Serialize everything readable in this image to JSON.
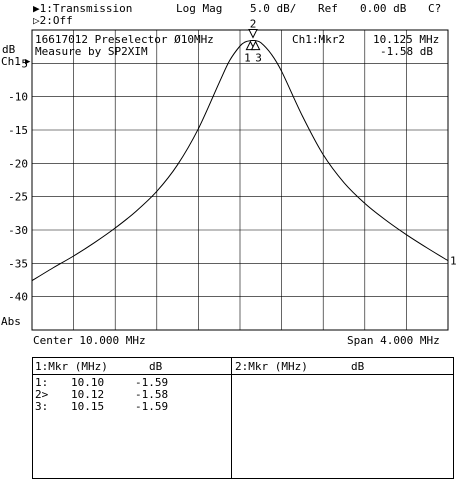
{
  "header": {
    "ch1_mode": "▶1:Transmission",
    "ch2_mode": "▷2:Off",
    "format": "Log Mag",
    "scale": "5.0 dB/",
    "ref_label": "Ref",
    "ref_value": "0.00 dB",
    "cal_status": "C?",
    "title_line1": "16617012 Preselector Ø10MHz",
    "title_line2": "Measure by SP2XIM",
    "marker_channel": "Ch1:Mkr2",
    "marker_freq": "10.125 MHz",
    "marker_value": "-1.58 dB",
    "y_unit": "dB",
    "channel_label": "Ch1",
    "abs_label": "Abs",
    "center": "Center 10.000 MHz",
    "span": "Span 4.000 MHz"
  },
  "chart_data": {
    "type": "line",
    "xlabel": "",
    "ylabel": "dB",
    "xlim": [
      8.0,
      12.0
    ],
    "ylim": [
      -45,
      0
    ],
    "y_ticks": [
      0,
      -5,
      -10,
      -15,
      -20,
      -25,
      -30,
      -35,
      -40
    ],
    "y_tick_labels": [
      "",
      "-5",
      "-10",
      "-15",
      "-20",
      "-25",
      "-30",
      "-35",
      "-40"
    ],
    "grid": true,
    "x_gridlines": 10,
    "series": [
      {
        "name": "",
        "x": [
          8.0,
          8.2,
          8.4,
          8.6,
          8.8,
          9.0,
          9.2,
          9.4,
          9.6,
          9.8,
          9.9,
          10.0,
          10.05,
          10.1,
          10.125,
          10.15,
          10.2,
          10.3,
          10.4,
          10.6,
          10.8,
          11.0,
          11.2,
          11.4,
          11.6,
          11.8,
          12.0
        ],
        "y": [
          -37.6,
          -35.7,
          -33.9,
          -31.9,
          -29.7,
          -27.2,
          -24.2,
          -20.2,
          -14.8,
          -7.9,
          -4.6,
          -2.4,
          -1.8,
          -1.6,
          -1.58,
          -1.6,
          -1.9,
          -3.6,
          -6.2,
          -12.9,
          -18.7,
          -22.9,
          -26.0,
          -28.5,
          -30.7,
          -32.7,
          -34.6
        ]
      }
    ],
    "markers": [
      {
        "label": "2",
        "x": 10.125,
        "y": -1.58,
        "position": "above"
      },
      {
        "label": "1",
        "x": 10.1,
        "y": -1.59,
        "position": "below"
      },
      {
        "label": "3",
        "x": 10.15,
        "y": -1.59,
        "position": "below"
      }
    ],
    "right_edge_label": "1"
  },
  "marker_table": {
    "ch1_header": "1:Mkr (MHz)",
    "ch1_unit": "dB",
    "ch2_header": "2:Mkr (MHz)",
    "ch2_unit": "dB",
    "rows": [
      {
        "id": "1:",
        "freq": "10.10",
        "value": "-1.59"
      },
      {
        "id": "2>",
        "freq": "10.12",
        "value": "-1.58"
      },
      {
        "id": "3:",
        "freq": "10.15",
        "value": "-1.59"
      }
    ]
  }
}
